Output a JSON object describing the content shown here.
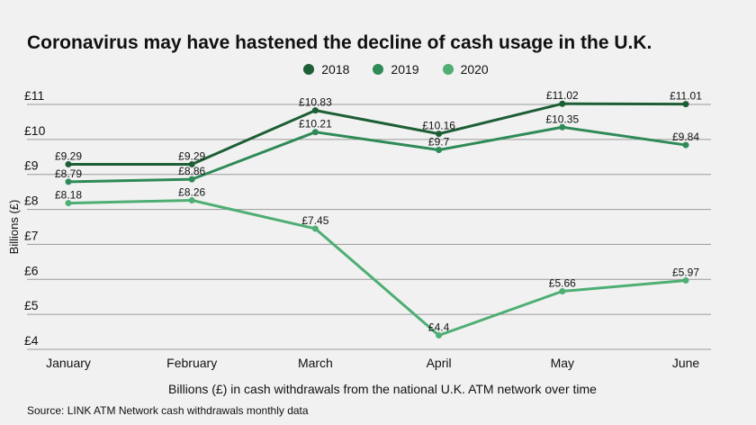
{
  "chart_data": {
    "type": "line",
    "title": "Coronavirus may have hastened the decline of cash usage in the U.K.",
    "xlabel": "Billions (£) in cash withdrawals from the national U.K. ATM network over time",
    "ylabel": "Billions (£)",
    "categories": [
      "January",
      "February",
      "March",
      "April",
      "May",
      "June"
    ],
    "y_ticks": [
      "£4",
      "£5",
      "£6",
      "£7",
      "£8",
      "£9",
      "£10",
      "£11"
    ],
    "ylim": [
      4,
      11
    ],
    "grid": "horizontal",
    "legend_position": "top-center",
    "series": [
      {
        "name": "2018",
        "color": "#1d5e35",
        "values": [
          9.29,
          9.29,
          10.83,
          10.16,
          11.02,
          11.01
        ],
        "labels": [
          "£9.29",
          "£9.29",
          "£10.83",
          "£10.16",
          "£11.02",
          "£11.01"
        ]
      },
      {
        "name": "2019",
        "color": "#2e8a57",
        "values": [
          8.79,
          8.86,
          10.21,
          9.7,
          10.35,
          9.84
        ],
        "labels": [
          "£8.79",
          "£8.86",
          "£10.21",
          "£9.7",
          "£10.35",
          "£9.84"
        ]
      },
      {
        "name": "2020",
        "color": "#4eae73",
        "values": [
          8.18,
          8.26,
          7.45,
          4.4,
          5.66,
          5.97
        ],
        "labels": [
          "£8.18",
          "£8.26",
          "£7.45",
          "£4.4",
          "£5.66",
          "£5.97"
        ]
      }
    ]
  },
  "source": "Source: LINK ATM Network cash withdrawals monthly data"
}
